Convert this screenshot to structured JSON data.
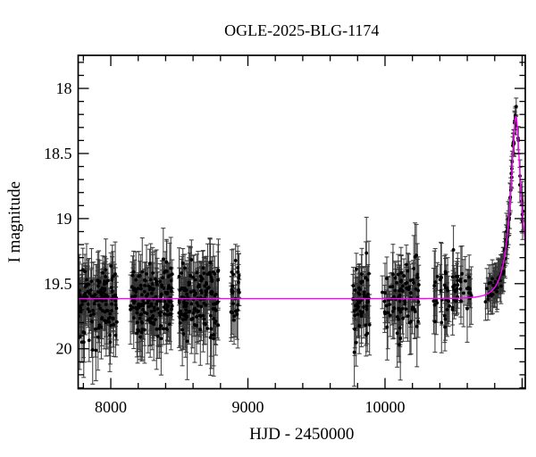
{
  "figure": {
    "title": "OGLE-2025-BLG-1174"
  },
  "chart_data": {
    "type": "scatter",
    "title": "OGLE-2025-BLG-1174",
    "xlabel": "HJD - 2450000",
    "ylabel": "I magnitude",
    "xlim": [
      7762,
      11023
    ],
    "ylim": [
      17.746,
      20.307
    ],
    "y_axis_inverted": true,
    "grid": false,
    "legend": "none",
    "x_ticks": {
      "major_values": [
        8000,
        9000,
        10000,
        11000
      ],
      "labeled_values": [
        8000,
        9000,
        10000
      ],
      "labels": [
        "8000",
        "9000",
        "10000"
      ],
      "minor_step": 200
    },
    "y_ticks": {
      "major_values": [
        18,
        18.5,
        19,
        19.5,
        20
      ],
      "labels": [
        "18",
        "18.5",
        "19",
        "19.5",
        "20"
      ],
      "minor_step": 0.1
    },
    "baseline_I_mag": 19.62,
    "peak_I_mag": 18.22,
    "peak_HJD": 10954,
    "model": {
      "kind": "microlensing-point-lens",
      "I0": 19.615,
      "t0": 10954.5,
      "tE": 87,
      "u0": 0.284,
      "color": "#ff00ff"
    },
    "seasons": [
      {
        "t_min": 7765,
        "t_max": 8046,
        "n": 140,
        "mag_mean": 19.66,
        "mag_sigma": 0.145
      },
      {
        "t_min": 8143,
        "t_max": 8450,
        "n": 165,
        "mag_mean": 19.63,
        "mag_sigma": 0.14
      },
      {
        "t_min": 8495,
        "t_max": 8788,
        "n": 150,
        "mag_mean": 19.63,
        "mag_sigma": 0.135
      },
      {
        "t_min": 8873,
        "t_max": 8938,
        "n": 26,
        "mag_mean": 19.63,
        "mag_sigma": 0.14
      },
      {
        "t_min": 9765,
        "t_max": 9889,
        "n": 55,
        "mag_mean": 19.62,
        "mag_sigma": 0.16
      },
      {
        "t_min": 9980,
        "t_max": 10261,
        "n": 85,
        "mag_mean": 19.6,
        "mag_sigma": 0.14
      },
      {
        "t_min": 10352,
        "t_max": 10645,
        "n": 60,
        "mag_mean": 19.57,
        "mag_sigma": 0.12
      }
    ],
    "season_error_bar_range": [
      0.1,
      0.28
    ],
    "event_points": {
      "rise": {
        "t_min": 10730,
        "t_max": 10958,
        "n": 68,
        "mag_sigma": 0.045
      },
      "fall": {
        "t_min": 10962,
        "t_max": 11012,
        "n": 9,
        "mag_sigma": 0.05
      },
      "error_bar_range": [
        0.05,
        0.17
      ]
    },
    "colors": {
      "background": "#ffffff",
      "frame": "#000000",
      "points": "#000000",
      "error_bars": "#333333",
      "model_curve": "#ff00ff",
      "text": "#000000"
    }
  }
}
